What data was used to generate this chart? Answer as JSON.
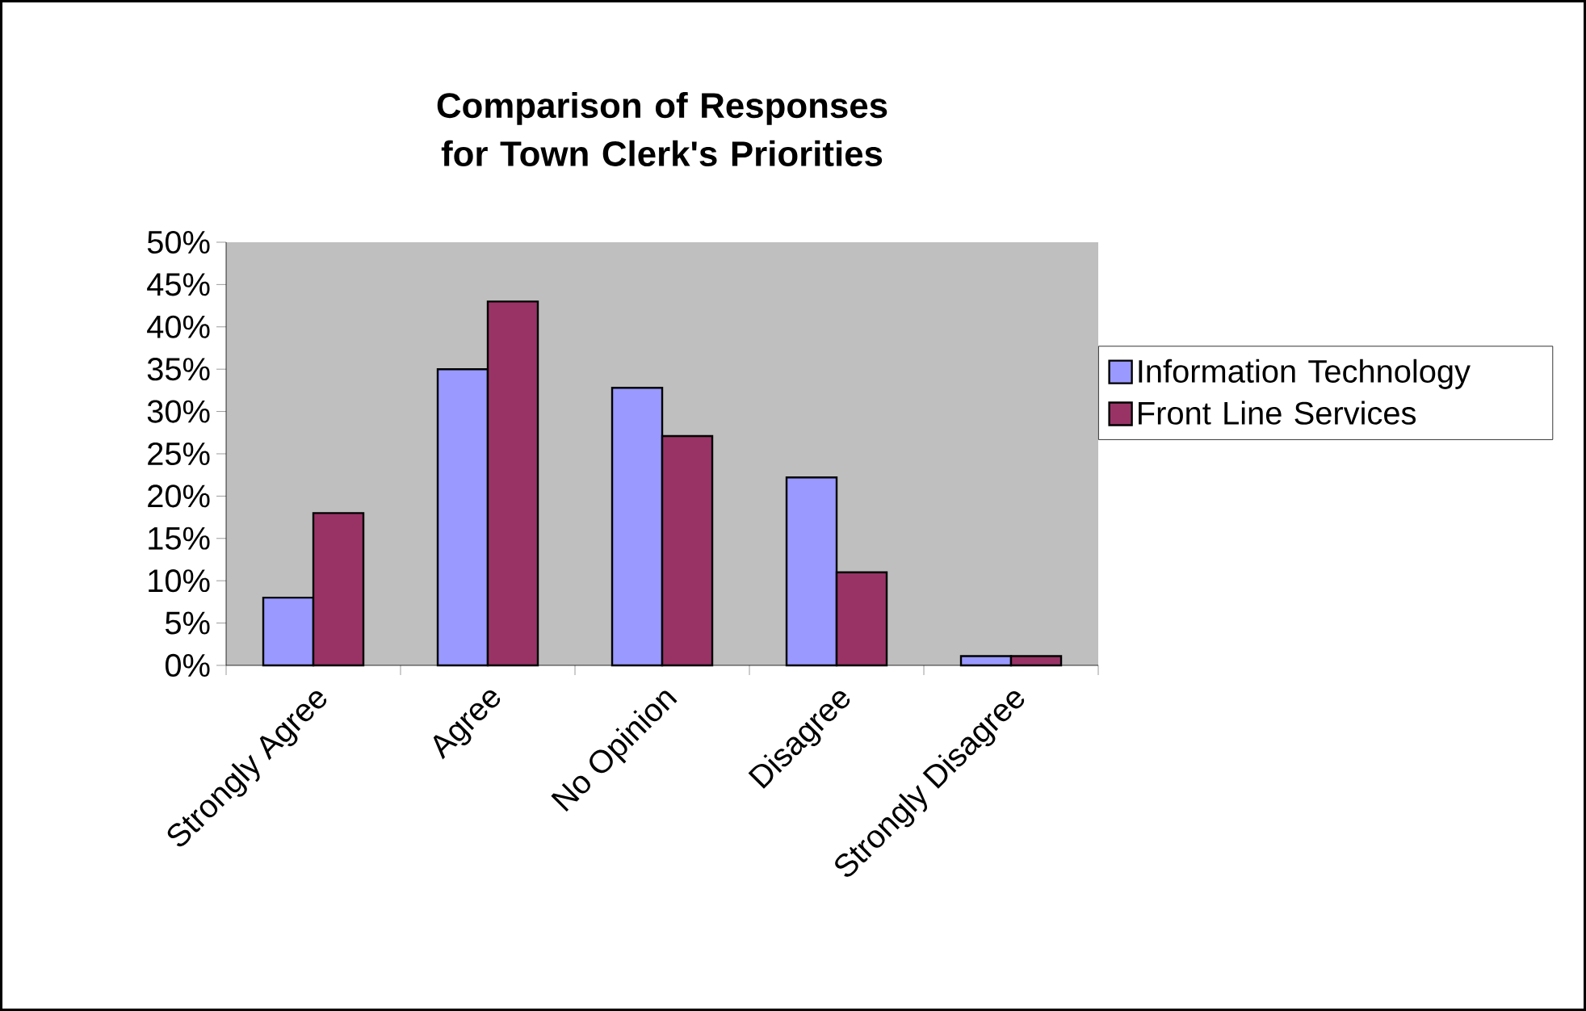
{
  "chart_data": {
    "type": "bar",
    "title": "Comparison of Responses for Town Clerk's Priorities",
    "categories": [
      "Strongly Agree",
      "Agree",
      "No Opinion",
      "Disagree",
      "Strongly Disagree"
    ],
    "series": [
      {
        "name": "Information Technology",
        "color": "#9999ff",
        "values": [
          8,
          35,
          32.8,
          22.2,
          1.1
        ]
      },
      {
        "name": "Front Line Services",
        "color": "#993366",
        "values": [
          18,
          43,
          27.1,
          11,
          1.1
        ]
      }
    ],
    "ylim": [
      0,
      50
    ],
    "yticks": [
      {
        "value": 0,
        "label": "0%"
      },
      {
        "value": 5,
        "label": "5%"
      },
      {
        "value": 10,
        "label": "10%"
      },
      {
        "value": 15,
        "label": "15%"
      },
      {
        "value": 20,
        "label": "20%"
      },
      {
        "value": 25,
        "label": "25%"
      },
      {
        "value": 30,
        "label": "30%"
      },
      {
        "value": 35,
        "label": "35%"
      },
      {
        "value": 40,
        "label": "40%"
      },
      {
        "value": 45,
        "label": "45%"
      },
      {
        "value": 50,
        "label": "50%"
      }
    ],
    "grid": false,
    "legend": "right"
  }
}
